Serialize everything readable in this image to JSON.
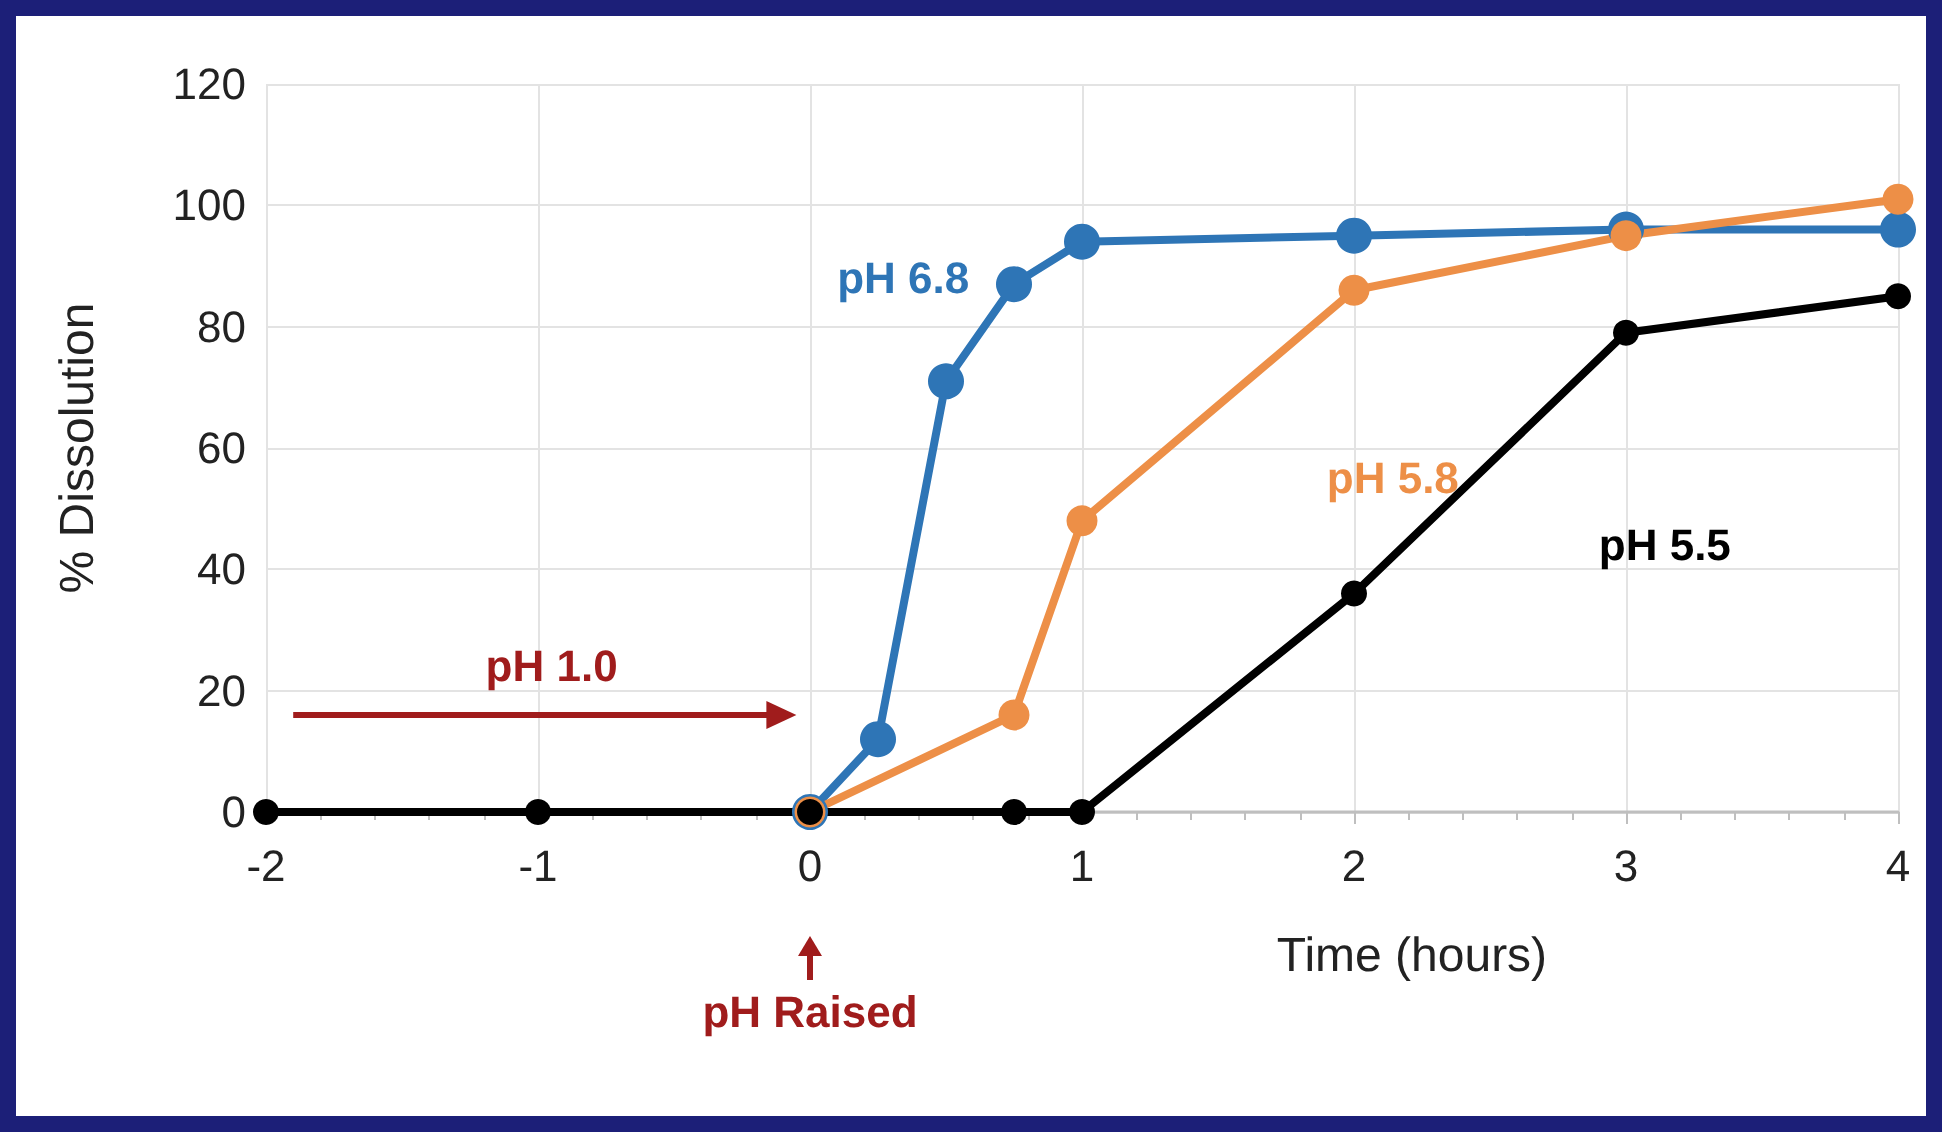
{
  "chart_data": {
    "type": "line",
    "xlabel": "Time (hours)",
    "ylabel": "% Dissolution",
    "xlim": [
      -2,
      4
    ],
    "xticks": [
      -2,
      -1,
      0,
      1,
      2,
      3,
      4
    ],
    "ylim": [
      0,
      120
    ],
    "yticks": [
      0,
      20,
      40,
      60,
      80,
      100,
      120
    ],
    "grid": true,
    "legend": false,
    "marker": "circle",
    "line_style": "solid",
    "series": [
      {
        "name": "pH 6.8",
        "color": "#2e75b6",
        "x": [
          0,
          0.25,
          0.5,
          0.75,
          1,
          2,
          3,
          4
        ],
        "values": [
          0,
          12,
          71,
          87,
          94,
          95,
          96,
          96
        ]
      },
      {
        "name": "pH 5.8",
        "color": "#ed8f47",
        "x": [
          0,
          0.75,
          1,
          2,
          3,
          4
        ],
        "values": [
          0,
          16,
          48,
          86,
          95,
          101
        ]
      },
      {
        "name": "pH 5.5",
        "color": "#000000",
        "x": [
          -2,
          -1,
          0,
          0.75,
          1,
          2,
          3,
          4
        ],
        "values": [
          0,
          0,
          0,
          0,
          0,
          36,
          79,
          85
        ]
      }
    ],
    "annotations": [
      "pH 1.0",
      "pH Raised"
    ]
  }
}
